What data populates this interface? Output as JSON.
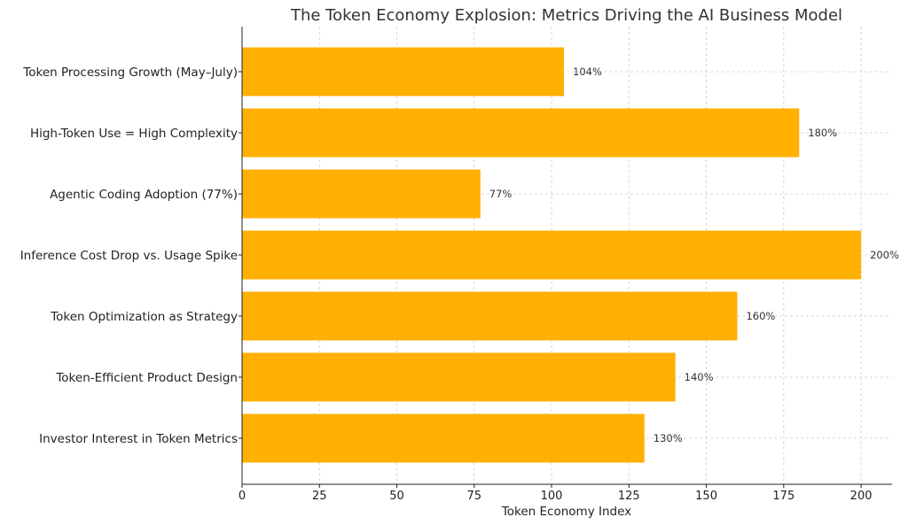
{
  "chart_data": {
    "type": "bar",
    "orientation": "horizontal",
    "title": "The Token Economy Explosion: Metrics Driving the AI Business Model",
    "xlabel": "Token Economy Index",
    "ylabel": "",
    "categories": [
      "Token Processing Growth (May–July)",
      "High-Token Use = High Complexity",
      "Agentic Coding Adoption (77%)",
      "Inference Cost Drop vs. Usage Spike",
      "Token Optimization as Strategy",
      "Token-Efficient Product Design",
      "Investor Interest in Token Metrics"
    ],
    "values": [
      104,
      180,
      77,
      200,
      160,
      140,
      130
    ],
    "data_labels": [
      "104%",
      "180%",
      "77%",
      "200%",
      "160%",
      "140%",
      "130%"
    ],
    "xlim": [
      0,
      210
    ],
    "xticks": [
      0,
      25,
      50,
      75,
      100,
      125,
      150,
      175,
      200
    ],
    "grid": true,
    "bar_color": "#FFB000"
  }
}
